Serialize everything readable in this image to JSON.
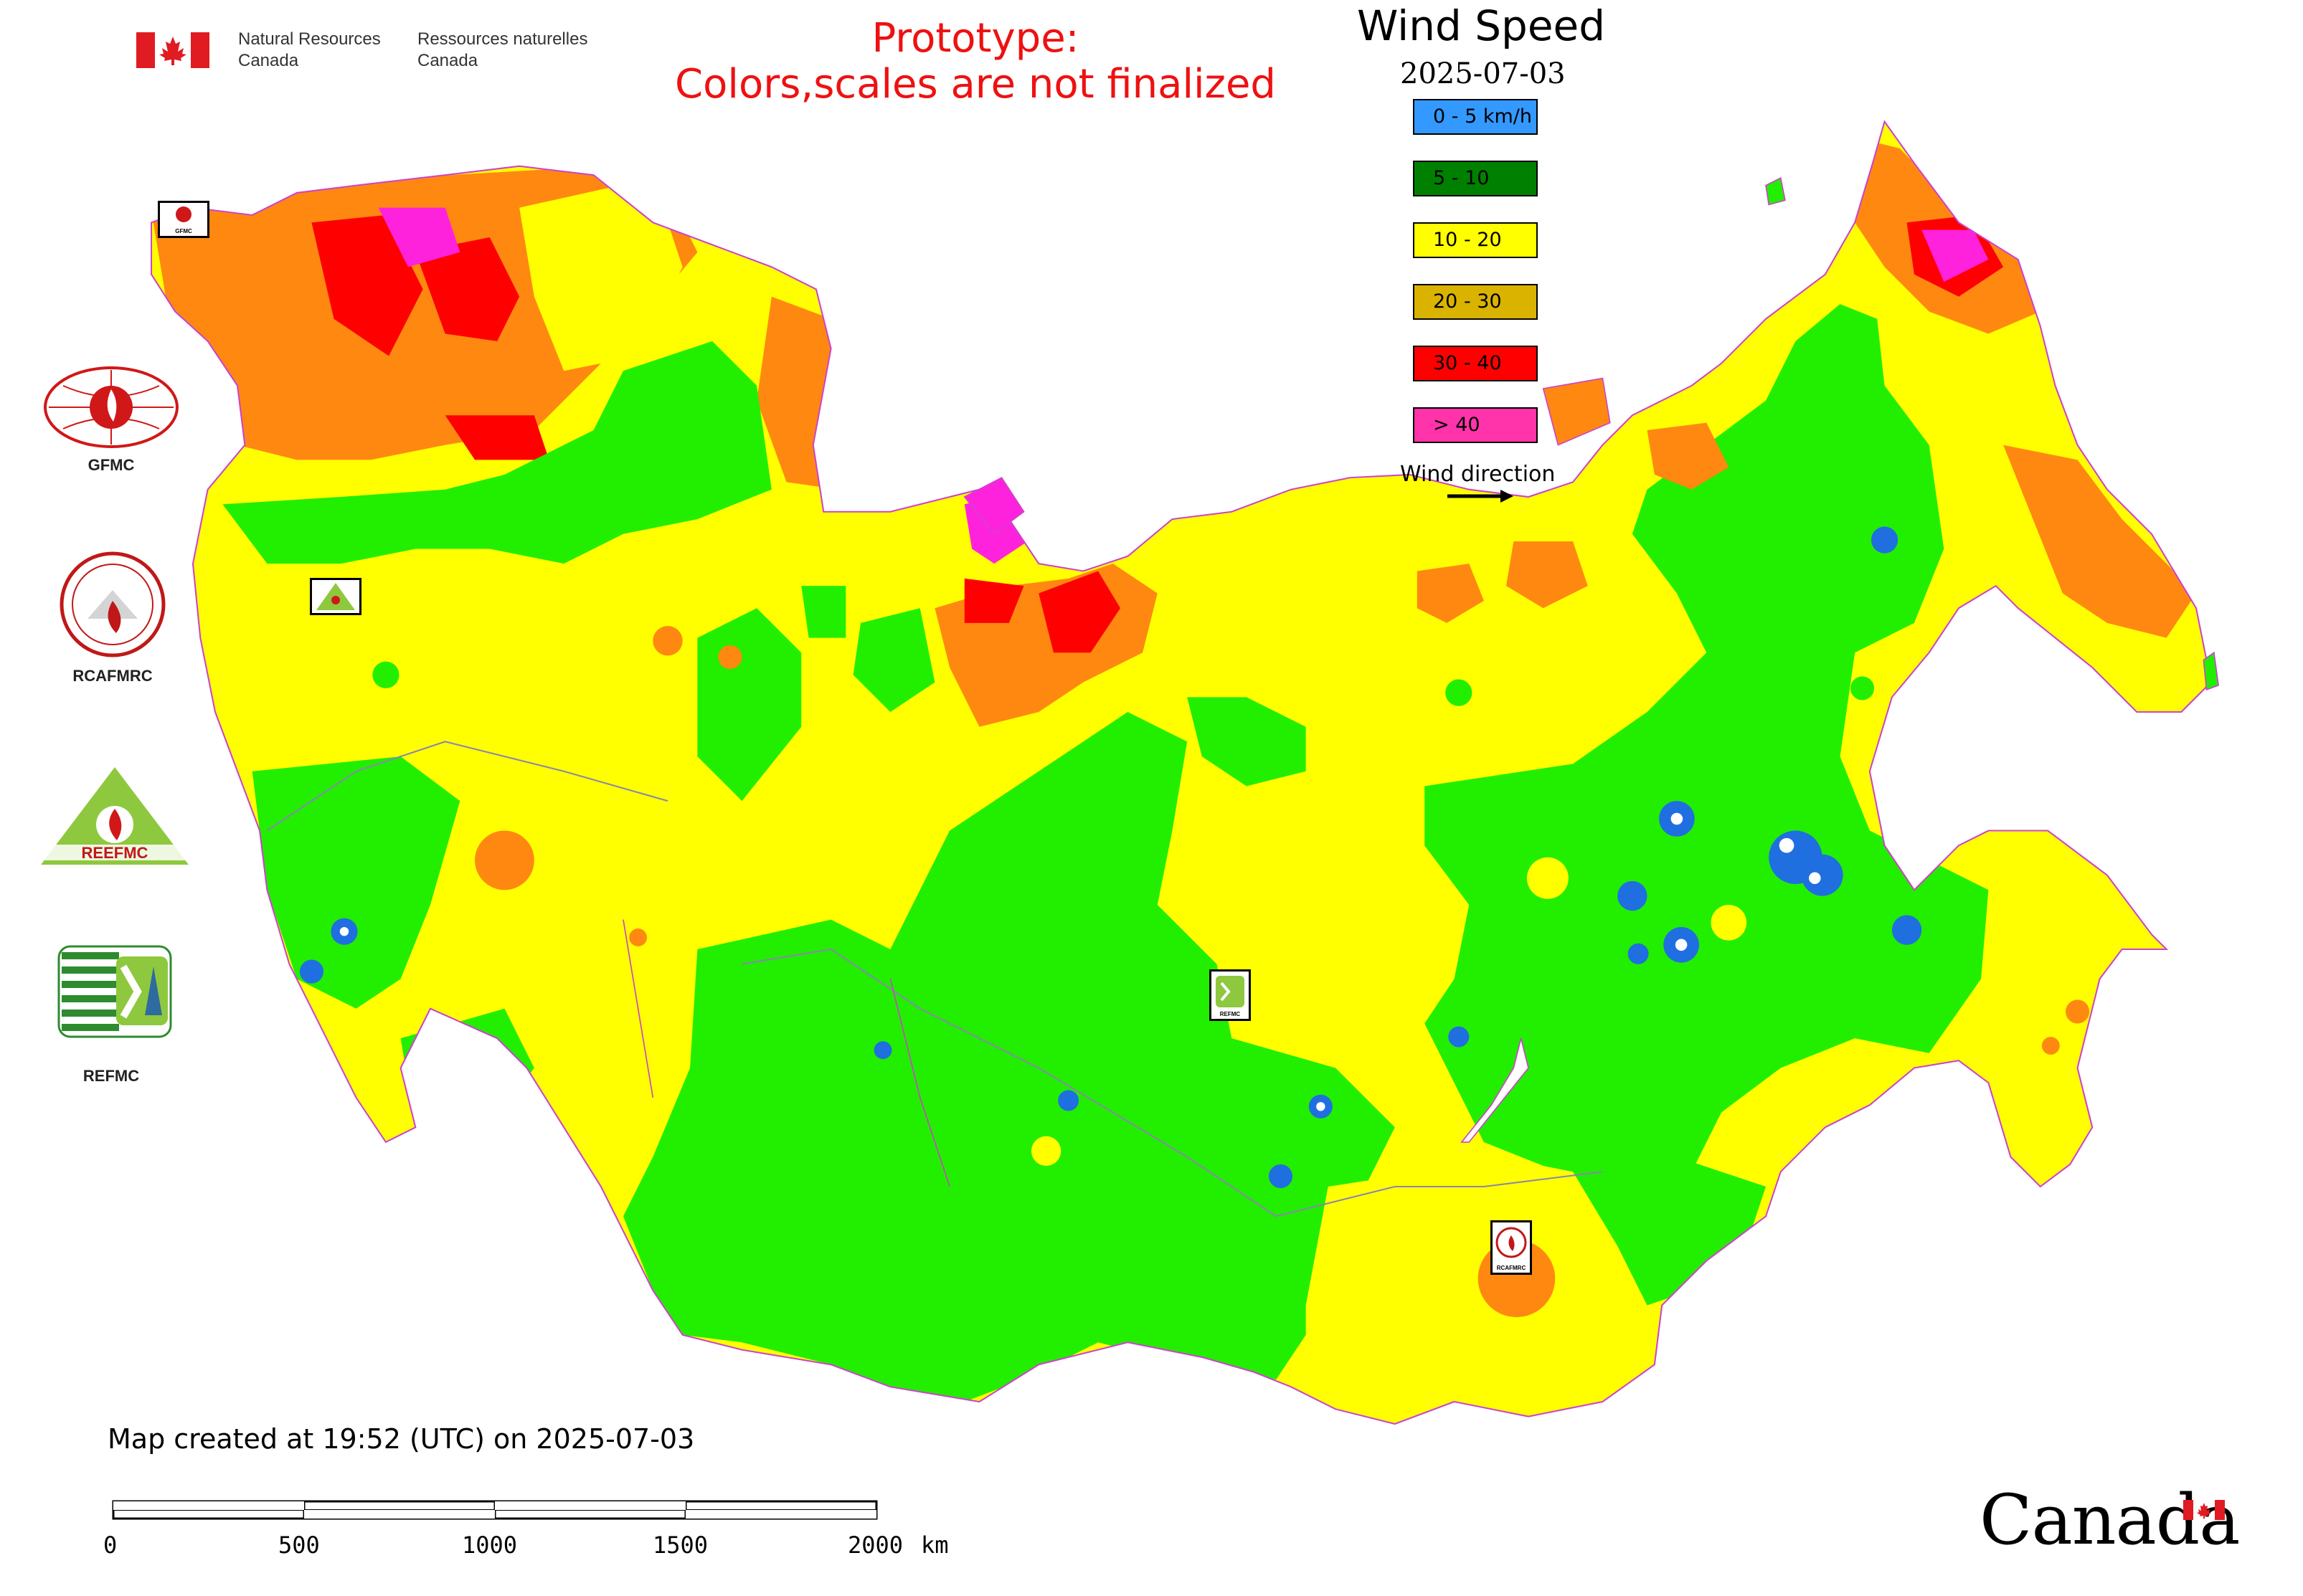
{
  "header": {
    "agency_en": "Natural Resources\nCanada",
    "agency_fr": "Ressources naturelles\nCanada",
    "prototype_line1": "Prototype:",
    "prototype_line2": "Colors,scales are not finalized"
  },
  "map_title": "Wind Speed",
  "map_date": "2025-07-03",
  "legend": [
    {
      "label": "0 - 5 km/h",
      "color": "#3399ff"
    },
    {
      "label": "5 - 10",
      "color": "#008000"
    },
    {
      "label": "10 - 20",
      "color": "#ffff00"
    },
    {
      "label": "20 - 30",
      "color": "#d9b300"
    },
    {
      "label": "30 - 40",
      "color": "#ff0000"
    },
    {
      "label": "> 40",
      "color": "#ff33aa"
    }
  ],
  "wind_direction_label": "Wind direction",
  "map_colors": {
    "calm": "#1f6fe0",
    "low": "#22ee00",
    "medium": "#ffff00",
    "high": "#ff8811",
    "very_high": "#ff0000",
    "extreme": "#ff22dd",
    "border": "#cc44cc"
  },
  "organizations": [
    {
      "label": "GFMC",
      "icon": "gfmc-logo-icon"
    },
    {
      "label": "RCAFMRC",
      "icon": "rcafmrc-logo-icon"
    },
    {
      "label": "REEFMC",
      "icon": "reefmc-triangle-logo-icon"
    },
    {
      "label": "REFMC",
      "icon": "refmc-logo-icon"
    }
  ],
  "map_markers": {
    "gfmc": "GFMC",
    "reefmc": "REEFMC",
    "refmc": "REFMC",
    "rcafmrc": "RCAFMRC"
  },
  "created_text": "Map created at 19:52 (UTC) on 2025-07-03",
  "scale_bar": {
    "labels": [
      "0",
      "500",
      "1000",
      "1500",
      "2000"
    ],
    "unit": "km"
  },
  "wordmark": "Canada"
}
